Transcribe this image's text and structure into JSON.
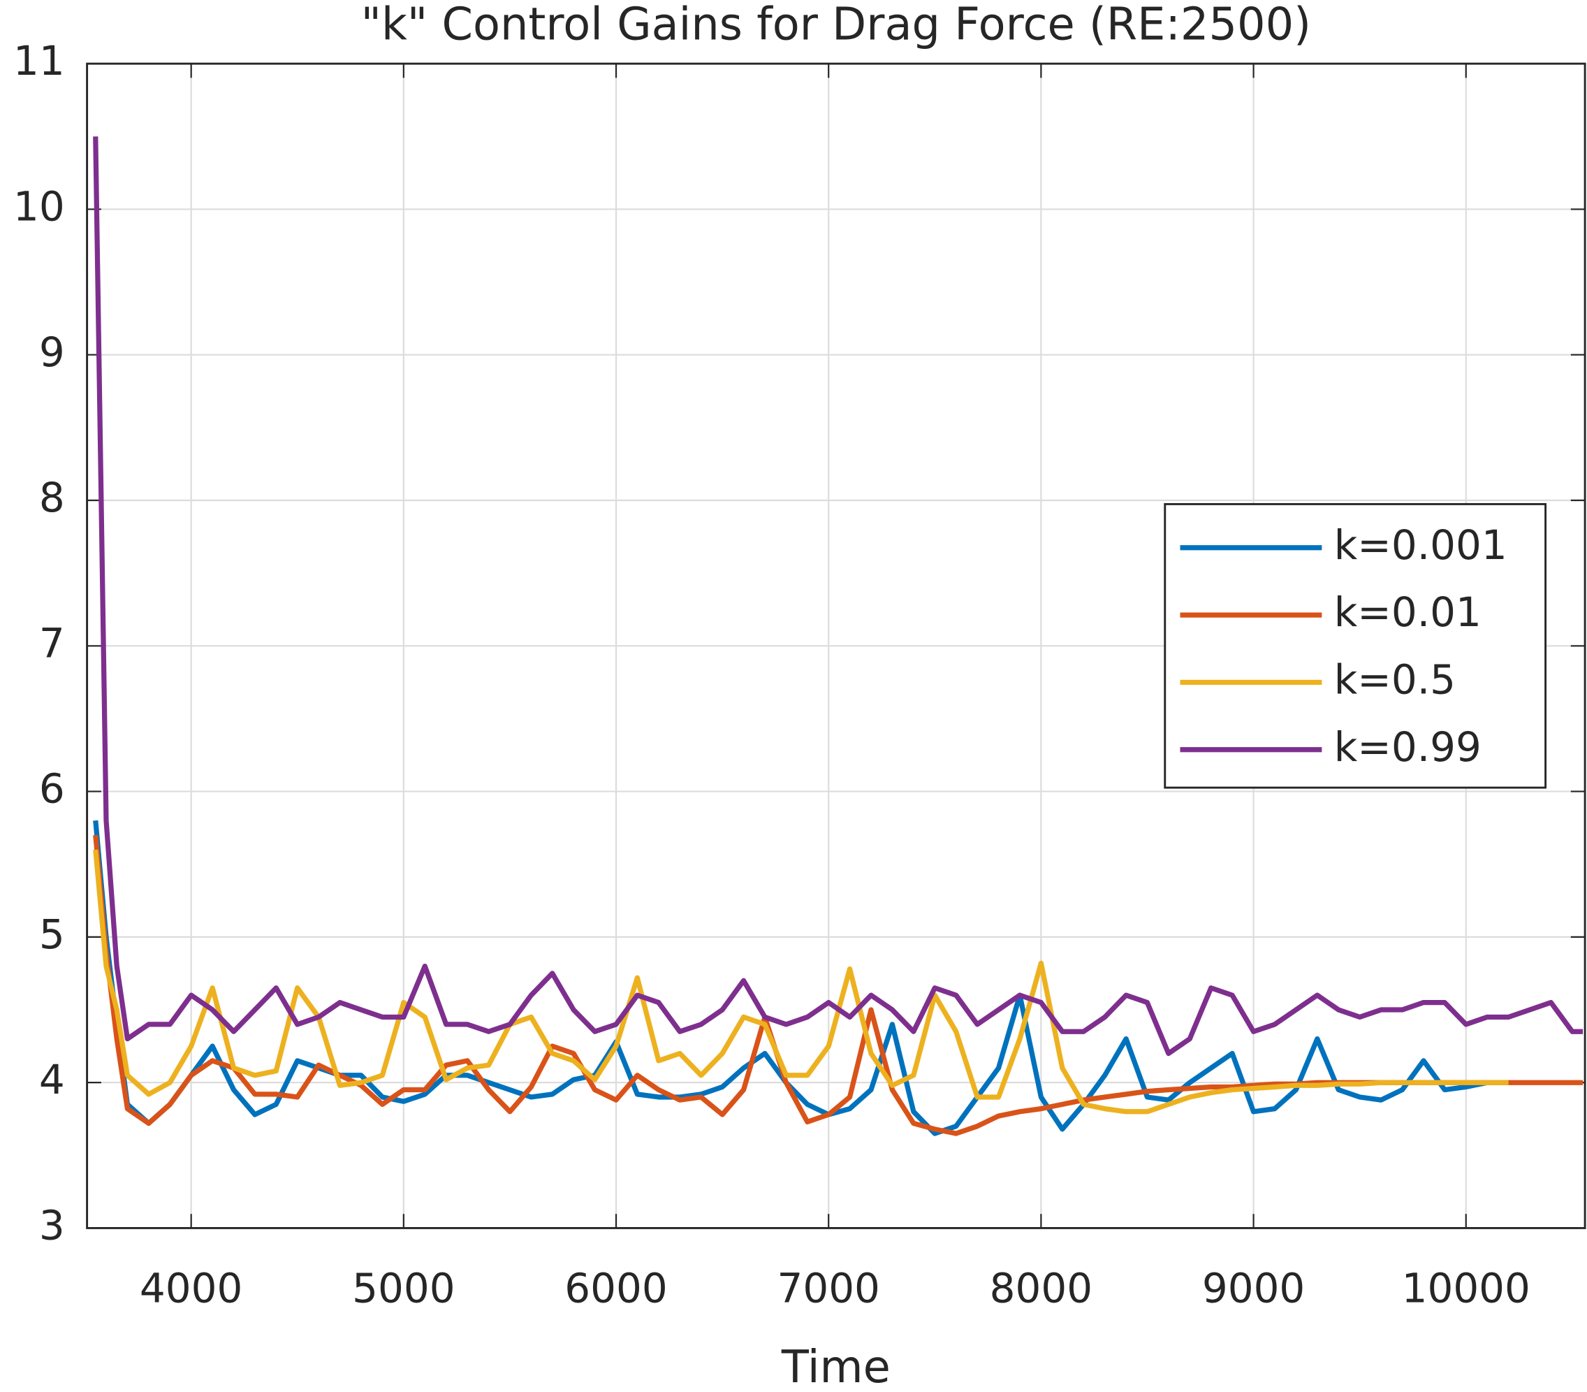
{
  "chart_data": {
    "type": "line",
    "title": "\"k\" Control Gains for Drag Force (RE:2500)",
    "xlabel": "Time",
    "x": [
      3550,
      3600,
      3650,
      3700,
      3800,
      3900,
      4000,
      4100,
      4200,
      4300,
      4400,
      4500,
      4600,
      4700,
      4800,
      4900,
      5000,
      5100,
      5200,
      5300,
      5400,
      5500,
      5600,
      5700,
      5800,
      5900,
      6000,
      6100,
      6200,
      6300,
      6400,
      6500,
      6600,
      6700,
      6800,
      6900,
      7000,
      7100,
      7200,
      7300,
      7400,
      7500,
      7600,
      7700,
      7800,
      7900,
      8000,
      8100,
      8200,
      8300,
      8400,
      8500,
      8600,
      8700,
      8800,
      8900,
      9000,
      9100,
      9200,
      9300,
      9400,
      9500,
      9600,
      9700,
      9800,
      9900,
      10000,
      10100,
      10200,
      10300,
      10400,
      10500,
      10550
    ],
    "series": [
      {
        "name": "k=0.001",
        "color": "#0072BD",
        "values": [
          5.8,
          5.0,
          4.4,
          3.85,
          3.72,
          3.85,
          4.05,
          4.25,
          3.95,
          3.78,
          3.85,
          4.15,
          4.1,
          4.05,
          4.05,
          3.9,
          3.87,
          3.92,
          4.05,
          4.05,
          4.0,
          3.95,
          3.9,
          3.92,
          4.02,
          4.05,
          4.28,
          3.92,
          3.9,
          3.9,
          3.92,
          3.97,
          4.1,
          4.2,
          4.0,
          3.85,
          3.78,
          3.82,
          3.95,
          4.4,
          3.8,
          3.65,
          3.7,
          3.9,
          4.1,
          4.6,
          3.9,
          3.68,
          3.85,
          4.05,
          4.3,
          3.9,
          3.88,
          4.0,
          4.1,
          4.2,
          3.8,
          3.82,
          3.95,
          4.3,
          3.95,
          3.9,
          3.88,
          3.95,
          4.15,
          3.95,
          3.97,
          4.0,
          null,
          null,
          null,
          null,
          null
        ]
      },
      {
        "name": "k=0.01",
        "color": "#D95319",
        "values": [
          5.7,
          4.9,
          4.3,
          3.82,
          3.72,
          3.85,
          4.05,
          4.15,
          4.1,
          3.92,
          3.92,
          3.9,
          4.12,
          4.05,
          3.98,
          3.85,
          3.95,
          3.95,
          4.12,
          4.15,
          3.95,
          3.8,
          3.97,
          4.25,
          4.2,
          3.95,
          3.88,
          4.05,
          3.95,
          3.88,
          3.9,
          3.78,
          3.95,
          4.45,
          4.0,
          3.73,
          3.78,
          3.9,
          4.5,
          3.95,
          3.72,
          3.68,
          3.65,
          3.7,
          3.77,
          3.8,
          3.82,
          3.85,
          3.88,
          3.9,
          3.92,
          3.94,
          3.95,
          3.96,
          3.97,
          3.97,
          3.98,
          3.99,
          3.99,
          4.0,
          4.0,
          4.0,
          4.0,
          4.0,
          4.0,
          4.0,
          4.0,
          4.0,
          4.0,
          4.0,
          4.0,
          4.0,
          4.0
        ]
      },
      {
        "name": "k=0.5",
        "color": "#EDB120",
        "values": [
          5.6,
          4.8,
          4.5,
          4.05,
          3.92,
          4.0,
          4.25,
          4.65,
          4.1,
          4.05,
          4.08,
          4.65,
          4.45,
          3.98,
          4.0,
          4.05,
          4.55,
          4.45,
          4.02,
          4.1,
          4.12,
          4.4,
          4.45,
          4.2,
          4.15,
          4.02,
          4.25,
          4.72,
          4.15,
          4.2,
          4.05,
          4.2,
          4.45,
          4.4,
          4.05,
          4.05,
          4.25,
          4.78,
          4.2,
          3.98,
          4.05,
          4.6,
          4.35,
          3.9,
          3.9,
          4.3,
          4.82,
          4.1,
          3.85,
          3.82,
          3.8,
          3.8,
          3.85,
          3.9,
          3.93,
          3.95,
          3.96,
          3.97,
          3.98,
          3.98,
          3.99,
          3.99,
          4.0,
          4.0,
          4.0,
          4.0,
          4.0,
          4.0,
          4.0,
          null,
          null,
          null,
          null
        ]
      },
      {
        "name": "k=0.99",
        "color": "#7E2F8E",
        "values": [
          10.5,
          5.8,
          4.8,
          4.3,
          4.4,
          4.4,
          4.6,
          4.5,
          4.35,
          4.5,
          4.65,
          4.4,
          4.45,
          4.55,
          4.5,
          4.45,
          4.45,
          4.8,
          4.4,
          4.4,
          4.35,
          4.4,
          4.6,
          4.75,
          4.5,
          4.35,
          4.4,
          4.6,
          4.55,
          4.35,
          4.4,
          4.5,
          4.7,
          4.45,
          4.4,
          4.45,
          4.55,
          4.45,
          4.6,
          4.5,
          4.35,
          4.65,
          4.6,
          4.4,
          4.5,
          4.6,
          4.55,
          4.35,
          4.35,
          4.45,
          4.6,
          4.55,
          4.2,
          4.3,
          4.65,
          4.6,
          4.35,
          4.4,
          4.5,
          4.6,
          4.5,
          4.45,
          4.5,
          4.5,
          4.55,
          4.55,
          4.4,
          4.45,
          4.45,
          4.5,
          4.55,
          4.35,
          4.35
        ]
      }
    ],
    "xlim": [
      3510,
      10560
    ],
    "xticks": [
      4000,
      5000,
      6000,
      7000,
      8000,
      9000,
      10000
    ],
    "ylim": [
      3,
      11
    ],
    "yticks": [
      3,
      4,
      5,
      6,
      7,
      8,
      9,
      10,
      11
    ],
    "grid": true,
    "legend": "right"
  }
}
